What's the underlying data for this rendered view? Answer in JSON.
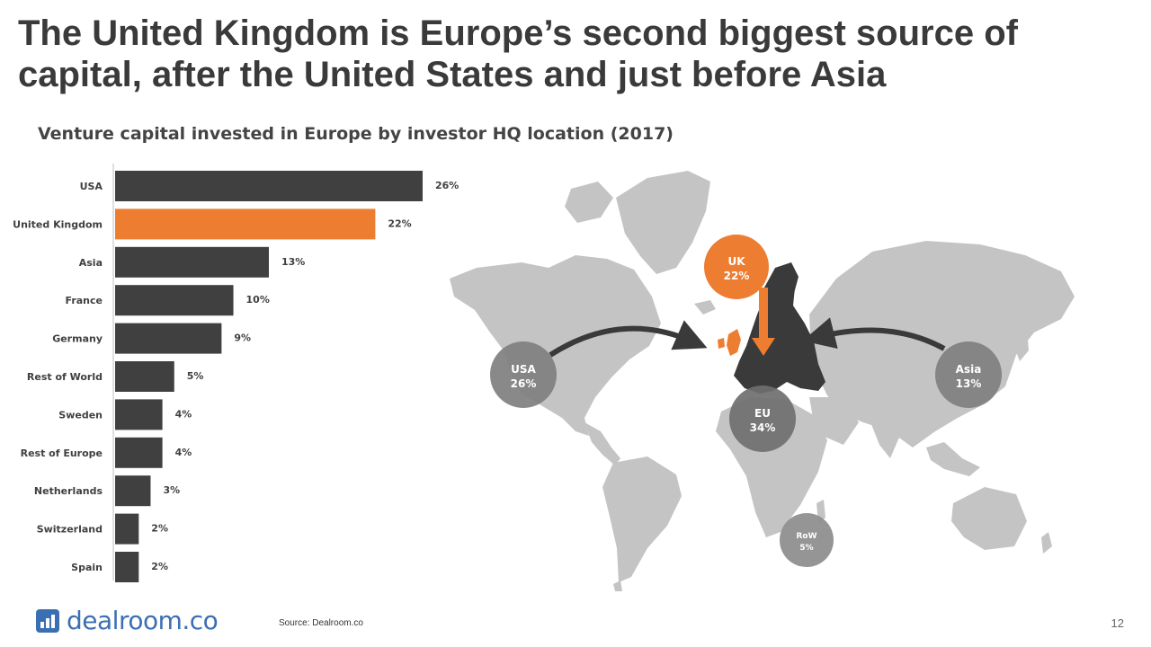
{
  "title": "The United Kingdom is Europe’s second biggest source of capital, after the United States and just before Asia",
  "subtitle": "Venture capital invested in Europe by investor HQ location (2017)",
  "chart_data": {
    "type": "bar",
    "orientation": "horizontal",
    "categories": [
      "USA",
      "United Kingdom",
      "Asia",
      "France",
      "Germany",
      "Rest of World",
      "Sweden",
      "Rest of Europe",
      "Netherlands",
      "Switzerland",
      "Spain"
    ],
    "values": [
      26,
      22,
      13,
      10,
      9,
      5,
      4,
      4,
      3,
      2,
      2
    ],
    "value_labels": [
      "26%",
      "22%",
      "13%",
      "10%",
      "9%",
      "5%",
      "4%",
      "4%",
      "3%",
      "2%",
      "2%"
    ],
    "unit": "%",
    "highlight": "United Kingdom",
    "colors": {
      "default": "#404040",
      "highlight": "#ed7d31"
    },
    "xlim": [
      0,
      26
    ],
    "grid": false,
    "legend": "none"
  },
  "map": {
    "bubbles": [
      {
        "id": "uk",
        "label": "UK",
        "value": "22%",
        "color": "#ed7d31"
      },
      {
        "id": "usa",
        "label": "USA",
        "value": "26%",
        "color": "#7f7f7f"
      },
      {
        "id": "asia",
        "label": "Asia",
        "value": "13%",
        "color": "#7f7f7f"
      },
      {
        "id": "eu",
        "label": "EU",
        "value": "34%",
        "color": "#6f6f6f"
      },
      {
        "id": "row",
        "label": "RoW",
        "value": "5%",
        "color": "#8c8c8c"
      }
    ],
    "land_color": "#c4c4c4",
    "europe_color": "#3a3a3a",
    "uk_color": "#ed7d31",
    "arrow_color": "#3a3a3a"
  },
  "footer": {
    "logo_text": "dealroom.co",
    "source": "Source: Dealroom.co",
    "page_number": "12"
  }
}
